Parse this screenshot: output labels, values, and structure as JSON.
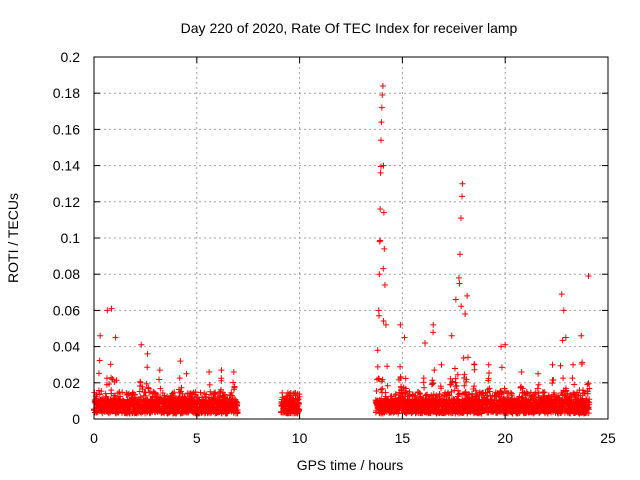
{
  "chart_data": {
    "type": "scatter",
    "title": "Day 220 of 2020, Rate Of TEC Index for receiver lamp",
    "xlabel": "GPS time / hours",
    "ylabel": "ROTI / TECUs",
    "xlim": [
      0,
      25
    ],
    "ylim": [
      0,
      0.2
    ],
    "x_ticks": [
      0,
      5,
      10,
      15,
      20,
      25
    ],
    "y_ticks": [
      0,
      0.02,
      0.04,
      0.06,
      0.08,
      0.1,
      0.12,
      0.14,
      0.16,
      0.18,
      0.2
    ],
    "x_tick_labels": [
      "0",
      "5",
      "10",
      "15",
      "20",
      "25"
    ],
    "y_tick_labels": [
      "0",
      "0.02",
      "0.04",
      "0.06",
      "0.08",
      "0.1",
      "0.12",
      "0.14",
      "0.16",
      "0.18",
      "0.2"
    ],
    "grid": true,
    "marker": "+",
    "color": "#ff0000",
    "segments": [
      {
        "start": 0.0,
        "end": 7.0
      },
      {
        "start": 9.1,
        "end": 10.0
      },
      {
        "start": 13.7,
        "end": 24.1
      }
    ],
    "peaks": [
      {
        "x": 0.3,
        "y": 0.046
      },
      {
        "x": 0.65,
        "y": 0.06
      },
      {
        "x": 0.85,
        "y": 0.061
      },
      {
        "x": 1.05,
        "y": 0.045
      },
      {
        "x": 2.3,
        "y": 0.041
      },
      {
        "x": 2.6,
        "y": 0.036
      },
      {
        "x": 3.2,
        "y": 0.027
      },
      {
        "x": 4.2,
        "y": 0.032
      },
      {
        "x": 4.5,
        "y": 0.025
      },
      {
        "x": 5.6,
        "y": 0.026
      },
      {
        "x": 6.2,
        "y": 0.027
      },
      {
        "x": 6.8,
        "y": 0.026
      },
      {
        "x": 9.5,
        "y": 0.013
      },
      {
        "x": 9.8,
        "y": 0.013
      },
      {
        "x": 13.8,
        "y": 0.038
      },
      {
        "x": 13.85,
        "y": 0.06
      },
      {
        "x": 13.88,
        "y": 0.08
      },
      {
        "x": 13.9,
        "y": 0.098
      },
      {
        "x": 13.92,
        "y": 0.116
      },
      {
        "x": 13.94,
        "y": 0.136
      },
      {
        "x": 13.96,
        "y": 0.154
      },
      {
        "x": 13.98,
        "y": 0.164
      },
      {
        "x": 14.0,
        "y": 0.172
      },
      {
        "x": 14.02,
        "y": 0.179
      },
      {
        "x": 14.05,
        "y": 0.184
      },
      {
        "x": 14.08,
        "y": 0.14
      },
      {
        "x": 14.1,
        "y": 0.114
      },
      {
        "x": 14.12,
        "y": 0.094
      },
      {
        "x": 14.15,
        "y": 0.074
      },
      {
        "x": 14.2,
        "y": 0.052
      },
      {
        "x": 14.9,
        "y": 0.052
      },
      {
        "x": 15.1,
        "y": 0.045
      },
      {
        "x": 16.1,
        "y": 0.042
      },
      {
        "x": 16.5,
        "y": 0.052
      },
      {
        "x": 16.9,
        "y": 0.03
      },
      {
        "x": 17.4,
        "y": 0.046
      },
      {
        "x": 17.6,
        "y": 0.066
      },
      {
        "x": 17.75,
        "y": 0.078
      },
      {
        "x": 17.8,
        "y": 0.091
      },
      {
        "x": 17.85,
        "y": 0.111
      },
      {
        "x": 17.9,
        "y": 0.123
      },
      {
        "x": 17.92,
        "y": 0.13
      },
      {
        "x": 18.05,
        "y": 0.058
      },
      {
        "x": 18.15,
        "y": 0.068
      },
      {
        "x": 18.5,
        "y": 0.03
      },
      {
        "x": 19.2,
        "y": 0.03
      },
      {
        "x": 19.8,
        "y": 0.04
      },
      {
        "x": 20.0,
        "y": 0.041
      },
      {
        "x": 20.8,
        "y": 0.026
      },
      {
        "x": 21.6,
        "y": 0.025
      },
      {
        "x": 22.3,
        "y": 0.03
      },
      {
        "x": 22.75,
        "y": 0.069
      },
      {
        "x": 22.85,
        "y": 0.06
      },
      {
        "x": 22.95,
        "y": 0.045
      },
      {
        "x": 23.3,
        "y": 0.03
      },
      {
        "x": 23.7,
        "y": 0.046
      },
      {
        "x": 24.05,
        "y": 0.079
      }
    ]
  }
}
